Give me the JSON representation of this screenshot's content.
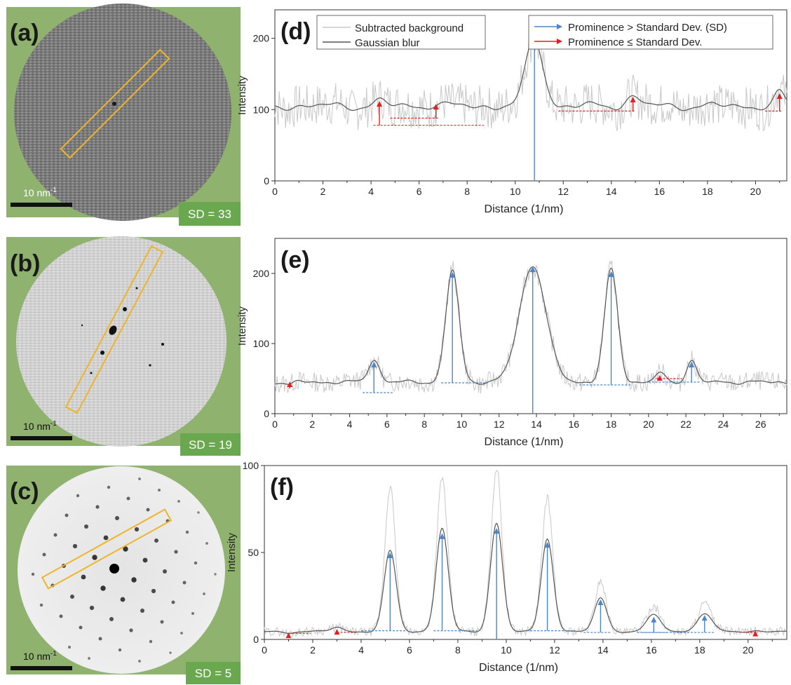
{
  "colors": {
    "panel_bg": "#8fb26e",
    "roi": "#f0b429",
    "sd_badge": "#6aa84f",
    "blue": "#4a86c8",
    "red": "#e02020",
    "raw_trace": "#c8c8c8",
    "blur_trace": "#555555"
  },
  "legend": {
    "raw": "Subtracted background",
    "blur": "Gaussian  blur",
    "blue_arrow": "Prominence > Standard Dev. (SD)",
    "red_arrow": "Prominence ≤ Standard Dev."
  },
  "images": [
    {
      "label": "(a)",
      "scale_label": "10 nm",
      "scale_sup": "-1",
      "sd_label": "SD = 33"
    },
    {
      "label": "(b)",
      "scale_label": "10 nm",
      "scale_sup": "-1",
      "sd_label": "SD = 19"
    },
    {
      "label": "(c)",
      "scale_label": "10 nm",
      "scale_sup": "-1",
      "sd_label": "SD = 5"
    }
  ],
  "chart_data": [
    {
      "type": "line",
      "panel_label": "(d)",
      "xlabel": "Distance (1/nm)",
      "ylabel": "Intensity",
      "xlim": [
        0,
        21.3
      ],
      "ylim": [
        0,
        240
      ],
      "xticks": [
        0,
        2,
        4,
        6,
        8,
        10,
        12,
        14,
        16,
        18,
        20
      ],
      "yticks": [
        0,
        100,
        200
      ],
      "baseline": 105,
      "noise": 30,
      "peaks": [
        {
          "x": 4.35,
          "y": 112,
          "w": 0.25
        },
        {
          "x": 6.7,
          "y": 108,
          "w": 0.25
        },
        {
          "x": 10.8,
          "y": 200,
          "w": 0.35
        },
        {
          "x": 14.9,
          "y": 118,
          "w": 0.3
        },
        {
          "x": 21.0,
          "y": 123,
          "w": 0.2
        }
      ],
      "blue_peaks": [
        {
          "x": 10.8,
          "y": 197,
          "base": 0
        }
      ],
      "red_peaks": [
        {
          "x": 4.35,
          "y": 112,
          "base": 78,
          "left": 4.1,
          "right": 8.7
        },
        {
          "x": 6.7,
          "y": 108,
          "base": 88,
          "left": 4.8,
          "right": 6.8
        },
        {
          "x": 14.9,
          "y": 118,
          "base": 98,
          "left": 11.8,
          "right": 15.0
        },
        {
          "x": 21.0,
          "y": 123,
          "base": 98,
          "left": 20.4,
          "right": 21.1
        }
      ]
    },
    {
      "type": "line",
      "panel_label": "(e)",
      "xlabel": "Distance (1/nm)",
      "ylabel": "Intensity",
      "xlim": [
        0,
        27.4
      ],
      "ylim": [
        0,
        250
      ],
      "xticks": [
        0,
        2,
        4,
        6,
        8,
        10,
        12,
        14,
        16,
        18,
        20,
        22,
        24,
        26
      ],
      "yticks": [
        0,
        100,
        200
      ],
      "baseline": 45,
      "noise": 14,
      "peaks": [
        {
          "x": 0.8,
          "y": 42,
          "w": 0.2
        },
        {
          "x": 5.3,
          "y": 77,
          "w": 0.3
        },
        {
          "x": 9.5,
          "y": 205,
          "w": 0.35
        },
        {
          "x": 13.8,
          "y": 212,
          "w": 0.7
        },
        {
          "x": 18.0,
          "y": 206,
          "w": 0.35
        },
        {
          "x": 20.6,
          "y": 58,
          "w": 0.25
        },
        {
          "x": 22.3,
          "y": 77,
          "w": 0.25
        }
      ],
      "blue_peaks": [
        {
          "x": 5.3,
          "y": 74,
          "base": 30,
          "left": 4.7,
          "right": 6.3
        },
        {
          "x": 9.5,
          "y": 202,
          "base": 44,
          "left": 8.9,
          "right": 11.4
        },
        {
          "x": 13.8,
          "y": 210,
          "base": 0
        },
        {
          "x": 18.0,
          "y": 203,
          "base": 41,
          "left": 16.3,
          "right": 19.1
        },
        {
          "x": 22.3,
          "y": 74,
          "base": 45,
          "left": 19.8,
          "right": 22.8
        }
      ],
      "red_peaks": [
        {
          "x": 0.8,
          "y": 46,
          "base": 36
        },
        {
          "x": 20.6,
          "y": 55,
          "base": 50,
          "left": 20.4,
          "right": 21.8
        }
      ]
    },
    {
      "type": "line",
      "panel_label": "(f)",
      "xlabel": "Distance (1/nm)",
      "ylabel": "Intensity",
      "xlim": [
        0,
        21.6
      ],
      "ylim": [
        0,
        100
      ],
      "xticks": [
        0,
        2,
        4,
        6,
        8,
        10,
        12,
        14,
        16,
        18,
        20
      ],
      "yticks": [
        0,
        50,
        100
      ],
      "baseline": 4.5,
      "noise": 2.5,
      "peaks": [
        {
          "x": 1.0,
          "y": 4,
          "w": 0.2
        },
        {
          "x": 3.0,
          "y": 7,
          "w": 0.25
        },
        {
          "x": 5.2,
          "y": 51,
          "w": 0.25,
          "raw": 88
        },
        {
          "x": 7.35,
          "y": 64,
          "w": 0.25,
          "raw": 93
        },
        {
          "x": 9.6,
          "y": 67,
          "w": 0.25,
          "raw": 99
        },
        {
          "x": 11.7,
          "y": 58,
          "w": 0.25,
          "raw": 82
        },
        {
          "x": 13.9,
          "y": 24,
          "w": 0.25,
          "raw": 34
        },
        {
          "x": 16.1,
          "y": 14,
          "w": 0.3,
          "raw": 19
        },
        {
          "x": 18.2,
          "y": 15,
          "w": 0.3,
          "raw": 21
        },
        {
          "x": 20.3,
          "y": 5,
          "w": 0.2
        }
      ],
      "blue_peaks": [
        {
          "x": 5.2,
          "y": 50,
          "base": 5,
          "left": 4.0,
          "right": 5.9
        },
        {
          "x": 7.35,
          "y": 61,
          "base": 5,
          "left": 7.0,
          "right": 8.8
        },
        {
          "x": 9.6,
          "y": 64,
          "base": 0
        },
        {
          "x": 11.7,
          "y": 56,
          "base": 5,
          "left": 10.7,
          "right": 12.8
        },
        {
          "x": 13.9,
          "y": 23,
          "base": 4,
          "left": 13.2,
          "right": 14.3
        },
        {
          "x": 16.1,
          "y": 13,
          "base": 4,
          "left": 15.4,
          "right": 16.7
        },
        {
          "x": 18.2,
          "y": 14,
          "base": 4,
          "left": 15.6,
          "right": 18.6
        }
      ],
      "red_peaks": [
        {
          "x": 1.0,
          "y": 4,
          "base": 3.5,
          "left": 1.0,
          "right": 1.9
        },
        {
          "x": 3.0,
          "y": 6,
          "base": 4,
          "left": 3.0,
          "right": 3.8
        },
        {
          "x": 20.3,
          "y": 5,
          "base": 4,
          "left": 19.8,
          "right": 20.4
        }
      ]
    }
  ]
}
